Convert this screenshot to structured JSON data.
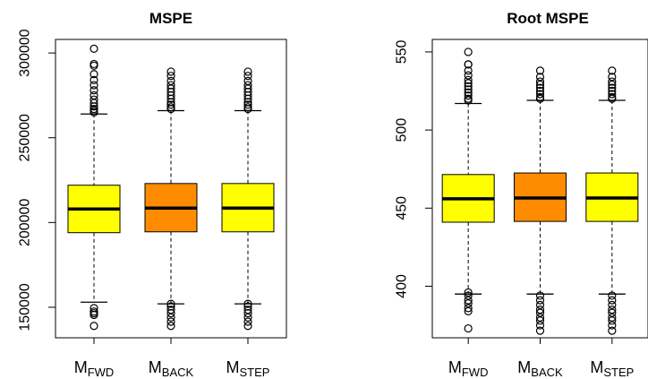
{
  "chart_data": [
    {
      "type": "boxplot",
      "title": "MSPE",
      "xlabel": "",
      "ylabel": "",
      "ylim": [
        132000,
        308000
      ],
      "yticks": [
        150000,
        200000,
        250000,
        300000
      ],
      "ytick_labels": [
        "150000",
        "200000",
        "250000",
        "300000"
      ],
      "categories": [
        {
          "main": "M",
          "sub": "FWD"
        },
        {
          "main": "M",
          "sub": "BACK"
        },
        {
          "main": "M",
          "sub": "STEP"
        }
      ],
      "boxes": [
        {
          "color": "#ffff00",
          "whisker_low": 153000,
          "q1": 194000,
          "median": 208000,
          "q3": 222000,
          "whisker_high": 264000,
          "outliers": [
            302500,
            293500,
            292500,
            287500,
            284000,
            281000,
            278000,
            275000,
            272500,
            270500,
            268500,
            267000,
            266000,
            265000,
            149500,
            147500,
            146500,
            145500,
            139000
          ]
        },
        {
          "color": "#ff8c00",
          "whisker_low": 152000,
          "q1": 194500,
          "median": 208500,
          "q3": 223000,
          "whisker_high": 266000,
          "outliers": [
            289000,
            286500,
            283500,
            281000,
            279000,
            277000,
            275000,
            273000,
            271000,
            269500,
            268000,
            267000,
            152000,
            150500,
            148500,
            146500,
            144000,
            141500,
            139000
          ]
        },
        {
          "color": "#ffff00",
          "whisker_low": 152000,
          "q1": 194500,
          "median": 208500,
          "q3": 223000,
          "whisker_high": 266000,
          "outliers": [
            289000,
            286500,
            283500,
            281000,
            279000,
            277000,
            275000,
            273000,
            271000,
            269500,
            268000,
            267000,
            152000,
            150500,
            148500,
            146500,
            144000,
            141500,
            139000
          ]
        }
      ]
    },
    {
      "type": "boxplot",
      "title": "Root MSPE",
      "xlabel": "",
      "ylabel": "",
      "ylim": [
        367000,
        558000
      ],
      "ylim_units_scale": 0.001,
      "yticks": [
        400,
        450,
        500,
        550
      ],
      "ytick_labels": [
        "400",
        "450",
        "500",
        "550"
      ],
      "categories": [
        {
          "main": "M",
          "sub": "FWD"
        },
        {
          "main": "M",
          "sub": "BACK"
        },
        {
          "main": "M",
          "sub": "STEP"
        }
      ],
      "boxes": [
        {
          "color": "#ffff00",
          "whisker_low": 395,
          "q1": 441,
          "median": 456,
          "q3": 471.5,
          "whisker_high": 517,
          "outliers": [
            550,
            542,
            542,
            538,
            535,
            532,
            530,
            528,
            526,
            524,
            522,
            520,
            519,
            396,
            394,
            391,
            389,
            386,
            384,
            373
          ]
        },
        {
          "color": "#ff8c00",
          "whisker_low": 395,
          "q1": 441.5,
          "median": 456.5,
          "q3": 472.5,
          "whisker_high": 519,
          "outliers": [
            538,
            534,
            531,
            529,
            527,
            525,
            523,
            521,
            520,
            394,
            391,
            388,
            385,
            383,
            380,
            378,
            375,
            371.5
          ]
        },
        {
          "color": "#ffff00",
          "whisker_low": 395,
          "q1": 441.5,
          "median": 456.5,
          "q3": 472.5,
          "whisker_high": 519,
          "outliers": [
            538,
            534,
            531,
            529,
            527,
            525,
            523,
            521,
            520,
            394,
            391,
            388,
            385,
            383,
            380,
            378,
            375,
            371.5
          ]
        }
      ]
    }
  ]
}
